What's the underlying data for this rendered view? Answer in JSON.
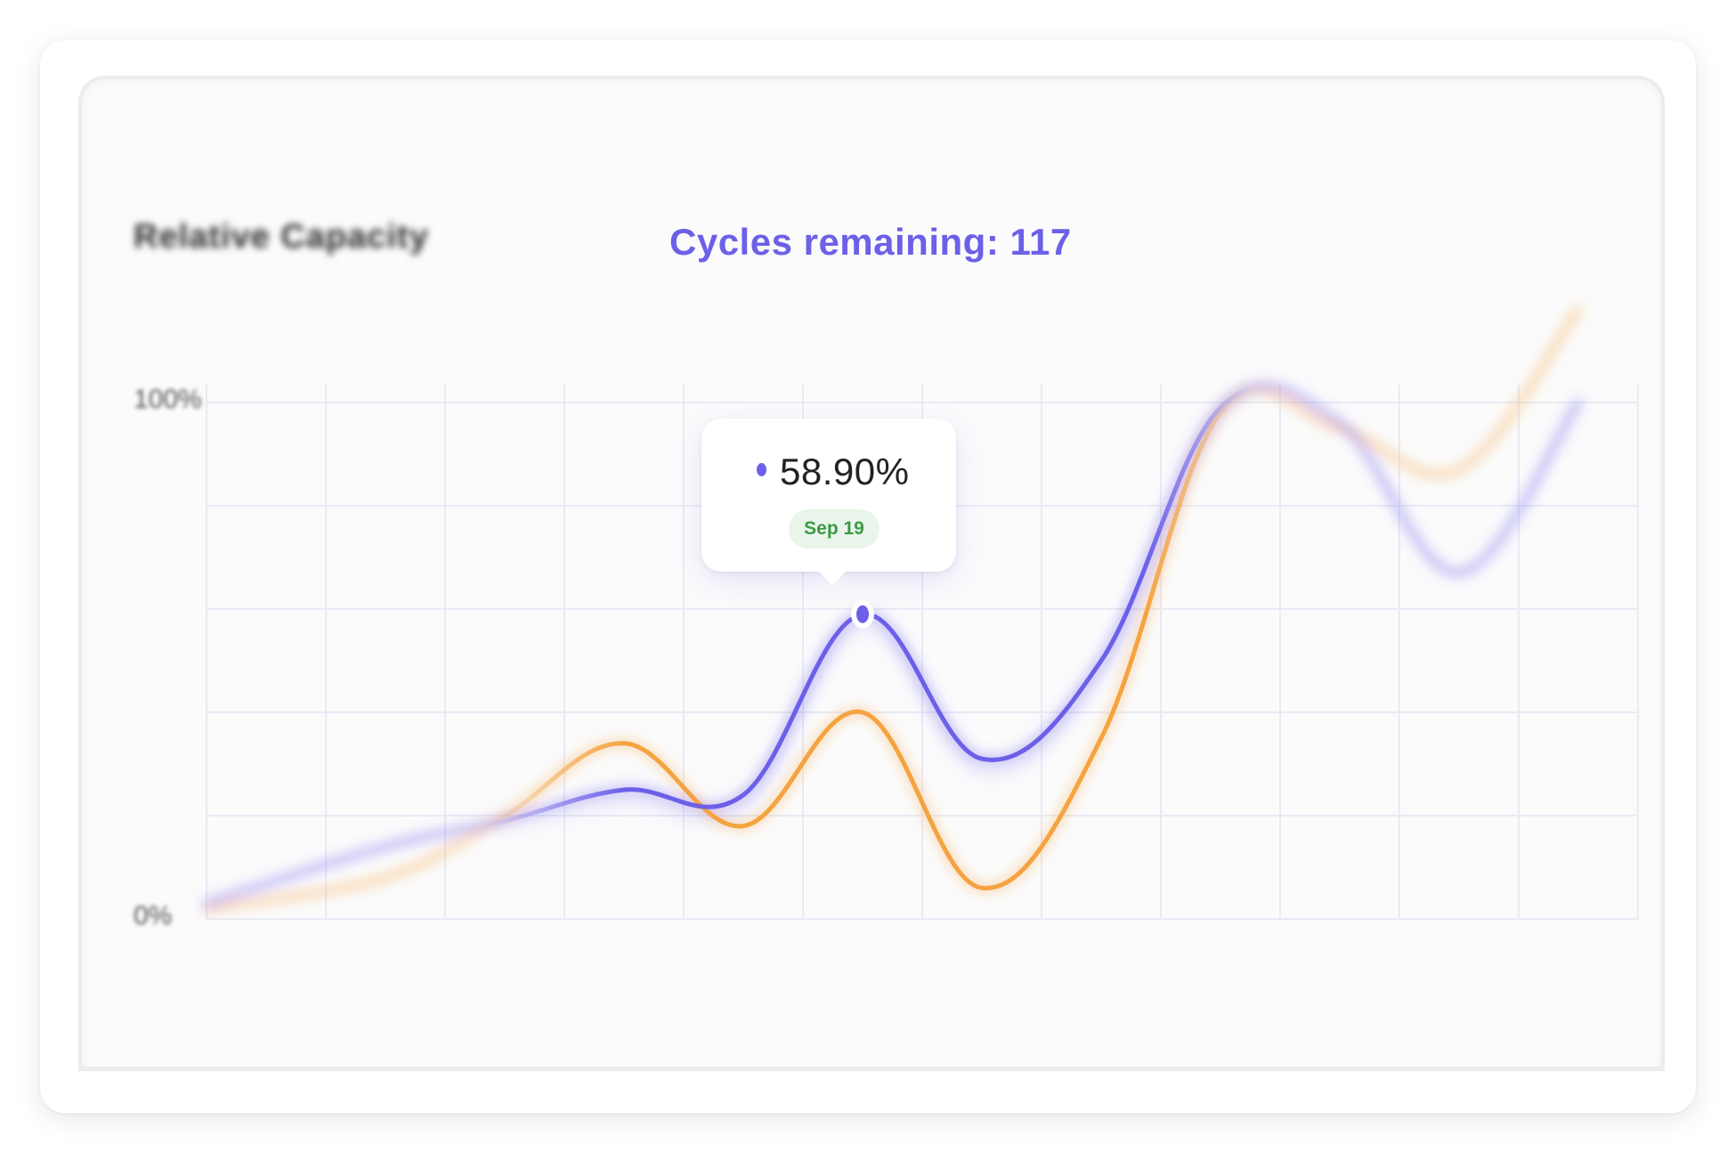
{
  "chart_data": {
    "type": "line",
    "title": "Relative Capacity",
    "annotation": "Cycles remaining: 117",
    "y_ticks": [
      "100%",
      "0%"
    ],
    "ylim": [
      0,
      100
    ],
    "grid": true,
    "series": [
      {
        "color": "#6c60e8",
        "x": [
          0,
          1.5,
          2.5,
          3.5,
          4.5,
          5.5,
          6.5,
          7.5,
          8.5,
          9.5,
          10.5,
          11.5
        ],
        "values": [
          3,
          14,
          19,
          25,
          24,
          59,
          31,
          50,
          99,
          96,
          67,
          100
        ]
      },
      {
        "color": "#f5a340",
        "x": [
          0,
          1.5,
          2.5,
          3.5,
          4.5,
          5.5,
          6.5,
          7.5,
          8.5,
          9.5,
          10.5,
          11.5
        ],
        "values": [
          2,
          8,
          20,
          34,
          18,
          40,
          6,
          35,
          98,
          95,
          87,
          118
        ]
      }
    ],
    "tooltip": {
      "value": "58.90%",
      "date": "Sep 19",
      "series_color": "#6c60e8"
    }
  }
}
